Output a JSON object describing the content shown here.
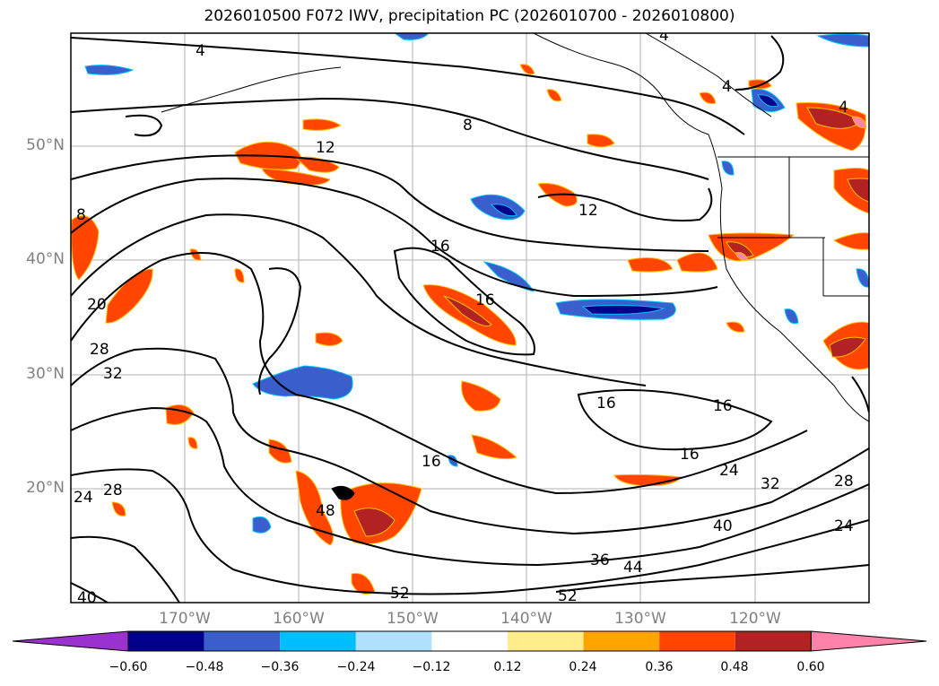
{
  "title": "2026010500 F072 IWV, precipitation PC (2026010700 - 2026010800)",
  "lat_labels": [
    "50°N",
    "40°N",
    "30°N",
    "20°N"
  ],
  "lon_labels": [
    "170°W",
    "160°W",
    "150°W",
    "140°W",
    "130°W",
    "120°W"
  ],
  "contour_labels": [
    "4",
    "8",
    "12",
    "16",
    "16",
    "16",
    "16",
    "8",
    "12",
    "16",
    "20",
    "24",
    "28",
    "32",
    "36",
    "40",
    "44",
    "48",
    "52",
    "52",
    "28",
    "32",
    "24",
    "28",
    "24",
    "40",
    "4",
    "4",
    "4",
    "16"
  ],
  "colorbar": {
    "ticks": [
      "−0.60",
      "−0.48",
      "−0.36",
      "−0.24",
      "−0.12",
      "0.12",
      "0.24",
      "0.36",
      "0.48",
      "0.60"
    ],
    "colors": [
      "#9a32cd",
      "#00008b",
      "#3a5fcd",
      "#00bfff",
      "#b0e2ff",
      "#ffffff",
      "#ffec8b",
      "#ffa500",
      "#ff4500",
      "#b22222",
      "#ff82ab"
    ]
  }
}
